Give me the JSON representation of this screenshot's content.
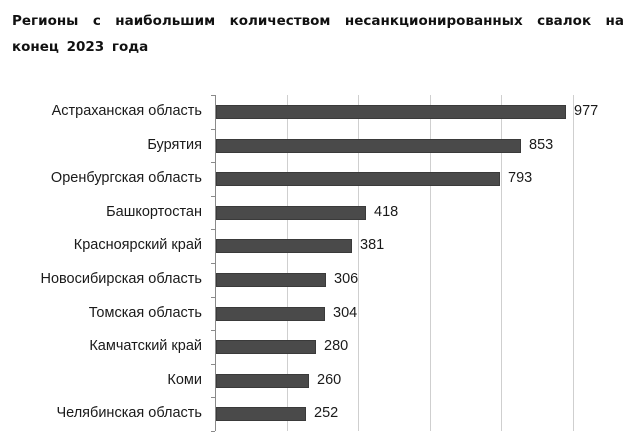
{
  "chart_data": {
    "type": "bar",
    "orientation": "horizontal",
    "title": "Регионы с наибольшим количеством несанкционированных свалок на конец 2023 года",
    "categories": [
      "Астраханская область",
      "Бурятия",
      "Оренбургская область",
      "Башкортостан",
      "Красноярский край",
      "Новосибирская область",
      "Томская область",
      "Камчатский край",
      "Коми",
      "Челябинская область"
    ],
    "values": [
      977,
      853,
      793,
      418,
      381,
      306,
      304,
      280,
      260,
      252
    ],
    "xlabel": "",
    "ylabel": "",
    "xlim": [
      0,
      1000
    ],
    "grid": true,
    "gridlines_at": [
      200,
      400,
      600,
      800,
      1000
    ],
    "x_tick_labels_visible": false,
    "legend": null,
    "bar_color": "#4a4a4a"
  },
  "title": "Регионы с наибольшим количеством несанкционированных свалок на конец 2023 года",
  "rows": [
    {
      "label": "Астраханская область",
      "value": "977"
    },
    {
      "label": "Бурятия",
      "value": "853"
    },
    {
      "label": "Оренбургская область",
      "value": "793"
    },
    {
      "label": "Башкортостан",
      "value": "418"
    },
    {
      "label": "Красноярский край",
      "value": "381"
    },
    {
      "label": "Новосибирская область",
      "value": "306"
    },
    {
      "label": "Томская область",
      "value": "304"
    },
    {
      "label": "Камчатский край",
      "value": "280"
    },
    {
      "label": "Коми",
      "value": "260"
    },
    {
      "label": "Челябинская область",
      "value": "252"
    }
  ]
}
